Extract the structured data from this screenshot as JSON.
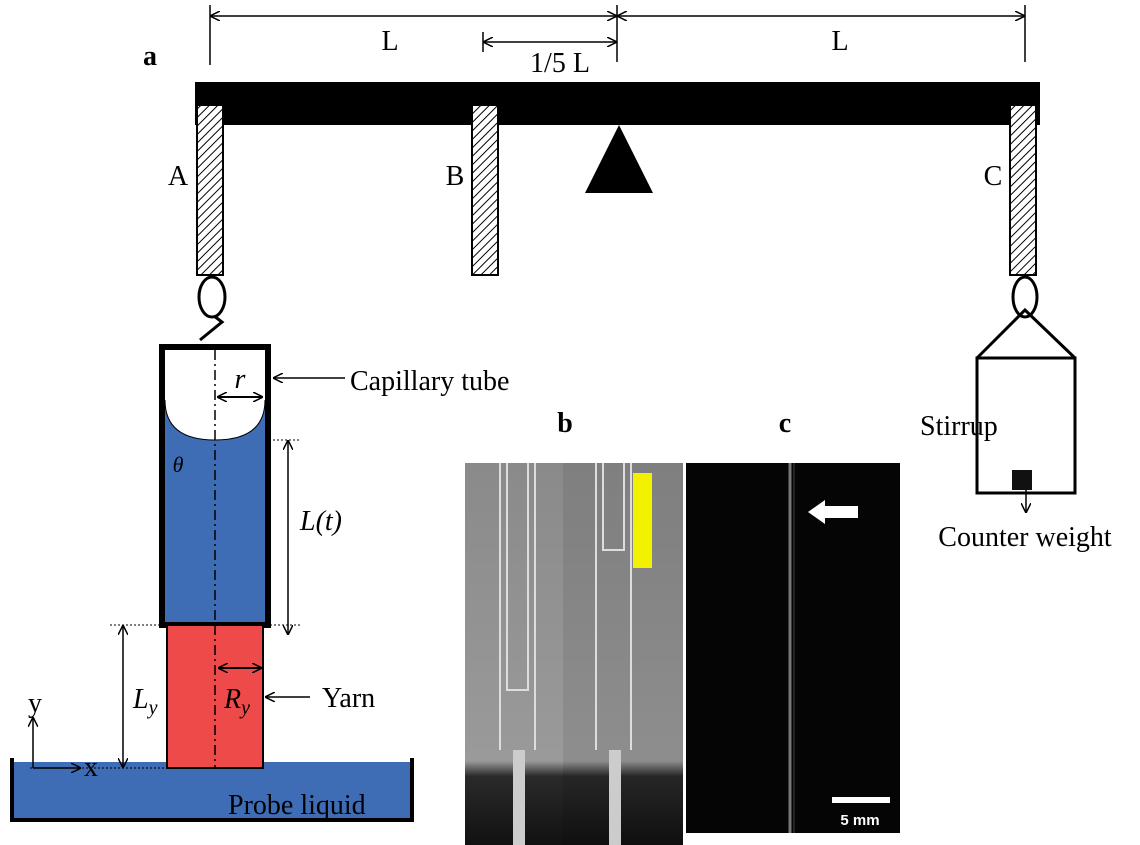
{
  "panel_a": {
    "label": "a",
    "dim_left": "L",
    "dim_fifth": "1/5 L",
    "dim_right": "L",
    "post_a": "A",
    "post_b": "B",
    "post_c": "C",
    "capillary_tube": "Capillary tube",
    "radius": "r",
    "angle": "θ",
    "length": "L(t)",
    "yarn_length": {
      "main": "L",
      "sub": "y"
    },
    "yarn_radius": {
      "main": "R",
      "sub": "y"
    },
    "yarn": "Yarn",
    "axis_y": "y",
    "axis_x": "x",
    "probe_liquid": "Probe liquid",
    "stirrup": "Stirrup",
    "counter_weight": "Counter weight"
  },
  "panel_b": {
    "label": "b"
  },
  "panel_c": {
    "label": "c",
    "scale_bar": "5 mm"
  }
}
